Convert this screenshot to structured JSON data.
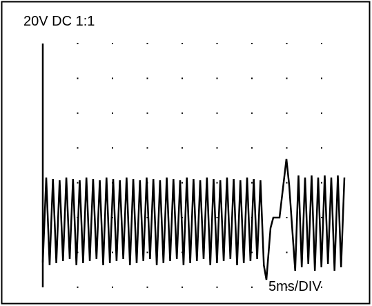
{
  "display": {
    "range_label": "20V DC 1:1",
    "timebase_label": "5ms/DIV"
  }
}
